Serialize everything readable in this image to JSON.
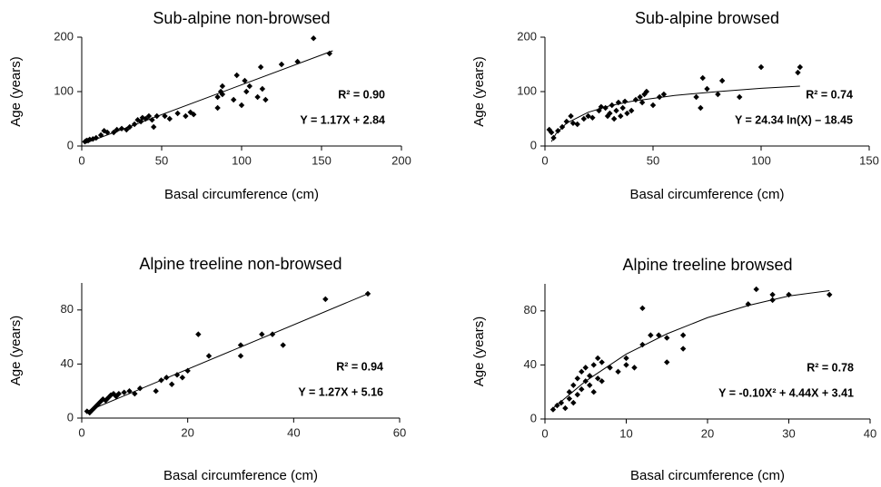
{
  "chart_data": [
    {
      "type": "scatter",
      "title": "Sub-alpine non-browsed",
      "x_label": "Basal circumference (cm)",
      "y_label": "Age (years)",
      "annotations": [
        "R² = 0.90",
        "Y = 1.17X + 2.84"
      ],
      "color": "#000000",
      "xlim": [
        0,
        200
      ],
      "ylim": [
        0,
        200
      ],
      "xticks": [
        0,
        50,
        100,
        150,
        200
      ],
      "yticks": [
        0,
        100,
        200
      ],
      "x": [
        2,
        3,
        4,
        5,
        7,
        9,
        12,
        14,
        16,
        20,
        22,
        25,
        28,
        30,
        33,
        35,
        37,
        38,
        40,
        42,
        44,
        45,
        47,
        52,
        55,
        60,
        65,
        68,
        70,
        85,
        85,
        87,
        88,
        88,
        95,
        97,
        100,
        102,
        103,
        105,
        110,
        112,
        113,
        115,
        125,
        135,
        145,
        155
      ],
      "y": [
        8,
        10,
        10,
        12,
        13,
        15,
        20,
        28,
        25,
        25,
        30,
        32,
        30,
        35,
        40,
        48,
        45,
        52,
        50,
        55,
        48,
        35,
        55,
        55,
        50,
        60,
        55,
        62,
        58,
        70,
        90,
        100,
        95,
        110,
        85,
        130,
        75,
        120,
        100,
        110,
        90,
        145,
        105,
        85,
        150,
        155,
        198,
        170
      ],
      "fit": {
        "x": [
          2,
          157
        ],
        "y": [
          5,
          175
        ]
      }
    },
    {
      "type": "scatter",
      "title": "Sub-alpine browsed",
      "x_label": "Basal circumference (cm)",
      "y_label": "Age (years)",
      "annotations": [
        "R² = 0.74",
        "Y = 24.34 ln(X) – 18.45"
      ],
      "color": "#000000",
      "xlim": [
        0,
        150
      ],
      "ylim": [
        0,
        200
      ],
      "xticks": [
        0,
        50,
        100,
        150
      ],
      "yticks": [
        0,
        100,
        200
      ],
      "x": [
        2,
        3,
        4,
        6,
        8,
        10,
        12,
        13,
        15,
        18,
        20,
        22,
        25,
        26,
        28,
        29,
        30,
        31,
        32,
        33,
        34,
        35,
        36,
        37,
        38,
        40,
        42,
        44,
        45,
        46,
        47,
        50,
        53,
        55,
        70,
        72,
        73,
        75,
        80,
        82,
        90,
        100,
        117,
        118
      ],
      "y": [
        30,
        25,
        15,
        28,
        35,
        45,
        55,
        42,
        40,
        50,
        55,
        52,
        65,
        72,
        70,
        55,
        60,
        75,
        50,
        65,
        80,
        55,
        70,
        82,
        60,
        65,
        85,
        90,
        80,
        95,
        100,
        75,
        90,
        95,
        90,
        70,
        125,
        105,
        95,
        120,
        90,
        145,
        135,
        145
      ],
      "fit": {
        "x": [
          3,
          5,
          10,
          20,
          30,
          40,
          60,
          80,
          100,
          118
        ],
        "y": [
          8,
          22,
          42,
          62,
          74,
          82,
          93,
          100,
          106,
          110
        ]
      }
    },
    {
      "type": "scatter",
      "title": "Alpine treeline non-browsed",
      "x_label": "Basal circumference (cm)",
      "y_label": "Age (years)",
      "annotations": [
        "R² = 0.94",
        "Y = 1.27X + 5.16"
      ],
      "color": "#000000",
      "xlim": [
        0,
        60
      ],
      "ylim": [
        0,
        100
      ],
      "xticks": [
        0,
        20,
        40,
        60
      ],
      "yticks": [
        0,
        40,
        80
      ],
      "x": [
        1,
        1.5,
        2,
        2.5,
        3,
        3.5,
        4,
        4.5,
        5,
        5.5,
        6,
        6.5,
        7,
        8,
        9,
        10,
        11,
        14,
        15,
        16,
        17,
        18,
        19,
        20,
        22,
        24,
        30,
        30,
        34,
        36,
        38,
        46,
        54
      ],
      "y": [
        5,
        4,
        6,
        8,
        10,
        12,
        14,
        13,
        15,
        17,
        18,
        16,
        18,
        19,
        20,
        18,
        22,
        20,
        28,
        30,
        25,
        32,
        30,
        35,
        62,
        46,
        46,
        54,
        62,
        62,
        54,
        88,
        92
      ],
      "fit": {
        "x": [
          1,
          54
        ],
        "y": [
          5,
          92
        ]
      }
    },
    {
      "type": "scatter",
      "title": "Alpine treeline browsed",
      "x_label": "Basal circumference (cm)",
      "y_label": "Age (years)",
      "annotations": [
        "R² = 0.78",
        "Y = -0.10X² + 4.44X + 3.41"
      ],
      "color": "#000000",
      "xlim": [
        0,
        40
      ],
      "ylim": [
        0,
        100
      ],
      "xticks": [
        0,
        10,
        20,
        30,
        40
      ],
      "yticks": [
        0,
        40,
        80
      ],
      "x": [
        1,
        1.5,
        2,
        2.5,
        3,
        3,
        3.5,
        3.5,
        4,
        4,
        4.5,
        4.5,
        5,
        5,
        5.5,
        5.5,
        6,
        6,
        6.5,
        6.5,
        7,
        7,
        8,
        9,
        10,
        10,
        11,
        12,
        12,
        13,
        14,
        15,
        15,
        17,
        17,
        25,
        26,
        28,
        28,
        30,
        35
      ],
      "y": [
        7,
        10,
        12,
        8,
        15,
        20,
        12,
        25,
        18,
        30,
        22,
        35,
        28,
        38,
        25,
        32,
        20,
        40,
        30,
        45,
        28,
        42,
        38,
        35,
        45,
        40,
        38,
        55,
        82,
        62,
        62,
        42,
        60,
        52,
        62,
        85,
        96,
        88,
        92,
        92,
        92
      ],
      "fit": {
        "x": [
          1,
          5,
          10,
          15,
          20,
          25,
          30,
          35
        ],
        "y": [
          8,
          28,
          48,
          63,
          75,
          84,
          91,
          95
        ]
      }
    }
  ]
}
